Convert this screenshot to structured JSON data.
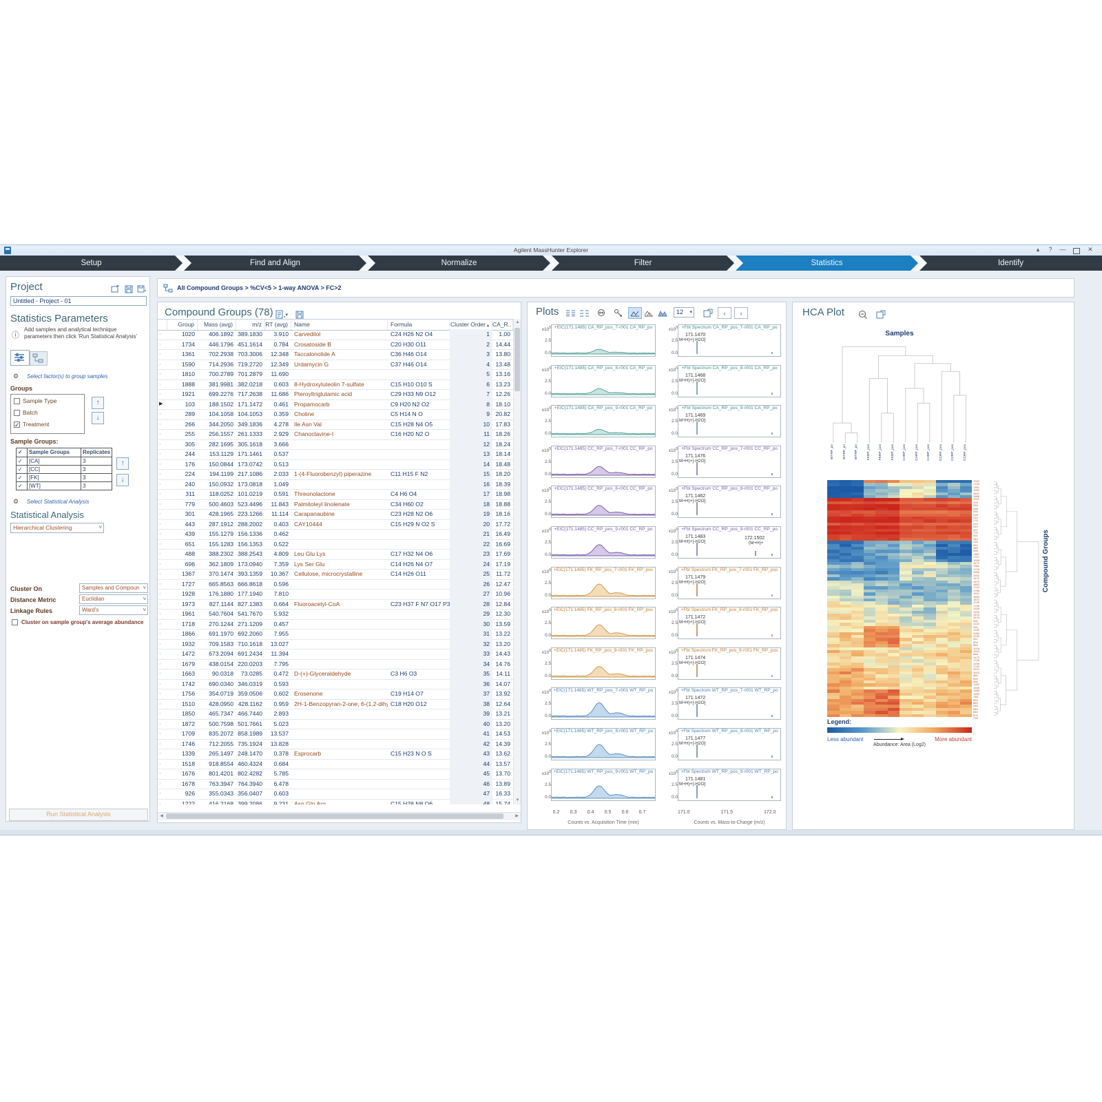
{
  "window": {
    "title": "Agilent MassHunter Explorer"
  },
  "nav": {
    "tabs": [
      {
        "label": "Setup",
        "active": false
      },
      {
        "label": "Find and Align",
        "active": false
      },
      {
        "label": "Normalize",
        "active": false
      },
      {
        "label": "Filter",
        "active": false
      },
      {
        "label": "Statistics",
        "active": true
      },
      {
        "label": "Identify",
        "active": false
      }
    ]
  },
  "breadcrumb": {
    "path": "All Compound Groups > %CV<5 > 1-way ANOVA > FC>2"
  },
  "project": {
    "title": "Project",
    "name": "Untitled - Project - 01"
  },
  "stats_params": {
    "title": "Statistics Parameters",
    "info": "Add samples and analytical technique parameters then click 'Run Statistical Analysis'",
    "group_link": "Select factor(s) to group samples",
    "groups_label": "Groups",
    "factors": [
      {
        "label": "Sample Type",
        "checked": false
      },
      {
        "label": "Batch",
        "checked": false
      },
      {
        "label": "Treatment",
        "checked": true
      }
    ],
    "sample_groups_label": "Sample Groups:",
    "sample_table": {
      "headers": [
        "Sample Groups",
        "Replicates"
      ],
      "rows": [
        {
          "checked": true,
          "name": "[CA]",
          "replicates": "3"
        },
        {
          "checked": true,
          "name": "[CC]",
          "replicates": "3"
        },
        {
          "checked": true,
          "name": "[FK]",
          "replicates": "3"
        },
        {
          "checked": true,
          "name": "[WT]",
          "replicates": "3"
        }
      ]
    },
    "analysis_link": "Select Statistical Analysis",
    "analysis_label": "Statistical Analysis",
    "analysis_value": "Hierarchical Clustering",
    "cluster_on_label": "Cluster On",
    "cluster_on_value": "Samples and Compoun",
    "distance_label": "Distance Metric",
    "distance_value": "Euclidian",
    "linkage_label": "Linkage Rules",
    "linkage_value": "Ward's",
    "avg_checkbox": "Cluster on sample group's average abundance",
    "run_button": "Run Statistical Analysis"
  },
  "table": {
    "title": "Compound Groups (78)",
    "headers": [
      "Group",
      "Mass (avg)",
      "m/z",
      "RT (avg)",
      "Name",
      "Formula",
      "Cluster Order",
      "CA_R.."
    ],
    "sorted_column": "Cluster Order",
    "selected_group": "103",
    "rows": [
      [
        "1020",
        "406.1892",
        "389.1830",
        "3.910",
        "Carvedilol",
        "C24 H26 N2 O4",
        "1",
        "1.00"
      ],
      [
        "1734",
        "446.1796",
        "451.1614",
        "0.784",
        "Crosatoside B",
        "C20 H30 O11",
        "2",
        "14.44"
      ],
      [
        "1361",
        "702.2938",
        "703.3006",
        "12.348",
        "Taccalonolide A",
        "C36 H46 O14",
        "3",
        "13.80"
      ],
      [
        "1590",
        "714.2936",
        "719.2720",
        "12.349",
        "Urdamycin G",
        "C37 H46 O14",
        "4",
        "13.48"
      ],
      [
        "1810",
        "700.2789",
        "701.2879",
        "11.690",
        "",
        "",
        "5",
        "13.16"
      ],
      [
        "1888",
        "381.9981",
        "382.0218",
        "0.603",
        "8-Hydroxyluteolin 7-sulfate",
        "C15 H10 O10 S",
        "6",
        "13.23"
      ],
      [
        "1921",
        "699.2276",
        "717.2638",
        "11.686",
        "Pteroyltriglutamic acid",
        "C29 H33 N9 O12",
        "7",
        "12.26"
      ],
      [
        "103",
        "188.1502",
        "171.1472",
        "0.461",
        "Propamocarb",
        "C9 H20 N2 O2",
        "8",
        "18.10"
      ],
      [
        "289",
        "104.1058",
        "104.1053",
        "0.359",
        "Choline",
        "C5 H14 N O",
        "9",
        "20.82"
      ],
      [
        "266",
        "344.2050",
        "349.1836",
        "4.278",
        "Ile Asn Val",
        "C15 H28 N4 O5",
        "10",
        "17.83"
      ],
      [
        "255",
        "256.1557",
        "261.1333",
        "2.929",
        "Chanoclavine-I",
        "C16 H20 N2 O",
        "11",
        "18.26"
      ],
      [
        "305",
        "282.1695",
        "305.1618",
        "3.666",
        "",
        "",
        "12",
        "18.24"
      ],
      [
        "244",
        "153.1129",
        "171.1461",
        "0.537",
        "",
        "",
        "13",
        "18.14"
      ],
      [
        "176",
        "150.0844",
        "173.0742",
        "0.513",
        "",
        "",
        "14",
        "18.48"
      ],
      [
        "224",
        "194.1199",
        "217.1086",
        "2.033",
        "1-(4-Fluorobenzyl) piperazine",
        "C11 H15 F N2",
        "15",
        "18.20"
      ],
      [
        "240",
        "150.0932",
        "173.0818",
        "1.049",
        "",
        "",
        "16",
        "18.39"
      ],
      [
        "311",
        "118.0252",
        "101.0219",
        "0.591",
        "Threonolactone",
        "C4 H6 O4",
        "17",
        "18.98"
      ],
      [
        "779",
        "500.4603",
        "523.4496",
        "11.843",
        "Palmitoleyl linolenate",
        "C34 H60 O2",
        "18",
        "18.88"
      ],
      [
        "301",
        "428.1965",
        "223.1266",
        "11.114",
        "Carapanaubine",
        "C23 H28 N2 O6",
        "19",
        "18.16"
      ],
      [
        "443",
        "287.1912",
        "288.2002",
        "0.403",
        "CAY10444",
        "C15 H29 N O2 S",
        "20",
        "17.72"
      ],
      [
        "439",
        "155.1279",
        "156.1336",
        "0.462",
        "",
        "",
        "21",
        "16.49"
      ],
      [
        "651",
        "155.1283",
        "156.1353",
        "0.522",
        "",
        "",
        "22",
        "16.69"
      ],
      [
        "488",
        "388.2302",
        "388.2543",
        "4.809",
        "Leu Glu Lys",
        "C17 H32 N4 O6",
        "23",
        "17.69"
      ],
      [
        "696",
        "362.1809",
        "173.0940",
        "7.359",
        "Lys Ser Glu",
        "C14 H26 N4 O7",
        "24",
        "17.19"
      ],
      [
        "1367",
        "370.1474",
        "393.1359",
        "10.367",
        "Cellulose, microcrystalline",
        "C14 H26 O11",
        "25",
        "11.72"
      ],
      [
        "1727",
        "665.8563",
        "666.8618",
        "0.596",
        "",
        "",
        "26",
        "12.47"
      ],
      [
        "1928",
        "176.1880",
        "177.1940",
        "7.810",
        "",
        "",
        "27",
        "10.96"
      ],
      [
        "1973",
        "827.1144",
        "827.1383",
        "0.664",
        "Fluoroacetyl-CoA",
        "C23 H37 F N7 O17 P3 S",
        "28",
        "12.84"
      ],
      [
        "1961",
        "540.7604",
        "541.7670",
        "5.932",
        "",
        "",
        "29",
        "12.30"
      ],
      [
        "1718",
        "270.1244",
        "271.1209",
        "0.457",
        "",
        "",
        "30",
        "13.59"
      ],
      [
        "1866",
        "691.1970",
        "692.2060",
        "7.955",
        "",
        "",
        "31",
        "13.22"
      ],
      [
        "1932",
        "709.1583",
        "710.1618",
        "13.027",
        "",
        "",
        "32",
        "13.20"
      ],
      [
        "1472",
        "673.2094",
        "691.2434",
        "11.394",
        "",
        "",
        "33",
        "14.43"
      ],
      [
        "1679",
        "438.0154",
        "220.0203",
        "7.795",
        "",
        "",
        "34",
        "14.76"
      ],
      [
        "1663",
        "90.0318",
        "73.0285",
        "0.472",
        "D-(+)-Glyceraldehyde",
        "C3 H6 O3",
        "35",
        "14.11"
      ],
      [
        "1742",
        "690.0340",
        "346.0319",
        "0.593",
        "",
        "",
        "36",
        "14.07"
      ],
      [
        "1756",
        "354.0719",
        "359.0506",
        "0.602",
        "Erosenone",
        "C19 H14 O7",
        "37",
        "13.92"
      ],
      [
        "1510",
        "428.0950",
        "428.1162",
        "0.959",
        "2H-1-Benzopyran-2-one, 6-(1,2-dihydr...",
        "C18 H20 O12",
        "38",
        "12.64"
      ],
      [
        "1850",
        "465.7347",
        "466.7440",
        "2.893",
        "",
        "",
        "39",
        "13.21"
      ],
      [
        "1872",
        "500.7598",
        "501.7661",
        "5.023",
        "",
        "",
        "40",
        "13.20"
      ],
      [
        "1709",
        "835.2072",
        "858.1989",
        "13.537",
        "",
        "",
        "41",
        "14.53"
      ],
      [
        "1746",
        "712.2055",
        "735.1924",
        "13.828",
        "",
        "",
        "42",
        "14.39"
      ],
      [
        "1339",
        "265.1497",
        "248.1470",
        "0.378",
        "Esprocarb",
        "C15 H23 N O S",
        "43",
        "13.62"
      ],
      [
        "1518",
        "918.8554",
        "460.4324",
        "0.684",
        "",
        "",
        "44",
        "13.57"
      ],
      [
        "1676",
        "801.4201",
        "802.4282",
        "5.785",
        "",
        "",
        "45",
        "13.70"
      ],
      [
        "1678",
        "763.3947",
        "764.3940",
        "6.478",
        "",
        "",
        "46",
        "13.89"
      ],
      [
        "926",
        "355.0343",
        "356.0407",
        "0.603",
        "",
        "",
        "47",
        "16.33"
      ],
      [
        "1222",
        "416.2168",
        "399.2086",
        "9.231",
        "Asn Gln Arg",
        "C15 H28 N8 O6",
        "48",
        "15.74"
      ]
    ]
  },
  "plots": {
    "title": "Plots",
    "page_size": "12",
    "yaxis_mult": "x10",
    "yaxis_exp": "5",
    "ytick_hi": "2.5",
    "ytick_lo": "0.0",
    "eic_xticks": [
      "0.2",
      "0.3",
      "0.4",
      "0.5",
      "0.6",
      "0.7"
    ],
    "eic_xlabel": "Counts vs. Acquisition Time (min)",
    "spec_xticks": [
      "171.0",
      "171.5",
      "172.0"
    ],
    "spec_xlabel": "Counts vs. Mass-to-Charge (m/z)",
    "rows": [
      {
        "sample": "CA_RP_pos_7",
        "group": "CA",
        "eic_title": "+EIC(171.1485) CA_RP_pos_7-r001 CA_RP_po",
        "spec_title": "+FbI Spectrum CA_RP_pos_7-r001 CA_RP_po",
        "peak_mz": "171.1470",
        "peak_label": "M+H)+[-H2O]",
        "amp": 0.2,
        "extra_mz": "",
        "extra_label": ""
      },
      {
        "sample": "CA_RP_pos_8",
        "group": "CA",
        "eic_title": "+EIC(171.1485) CA_RP_pos_8-r001 CA_RP_po",
        "spec_title": "+FbI Spectrum CA_RP_pos_8-r001 CA_RP_po",
        "peak_mz": "171.1468",
        "peak_label": "M+H)+[-H2O]",
        "amp": 0.27,
        "extra_mz": "",
        "extra_label": ""
      },
      {
        "sample": "CA_RP_pos_9",
        "group": "CA",
        "eic_title": "+EIC(171.1485) CA_RP_pos_9-r001 CA_RP_po",
        "spec_title": "+FbI Spectrum CA_RP_pos_9-r001 CA_RP_po",
        "peak_mz": "171.1469",
        "peak_label": "M+H)+[-H2O]",
        "amp": 0.23,
        "extra_mz": "",
        "extra_label": ""
      },
      {
        "sample": "CC_RP_pos_7",
        "group": "CC",
        "eic_title": "+EIC(171.1485) CC_RP_pos_7-r001 CC_RP_po",
        "spec_title": "+FbI Spectrum CC_RP_pos_7-r001 CC_RP_po",
        "peak_mz": "171.1476",
        "peak_label": "M+H)+[-H2O]",
        "amp": 0.42,
        "extra_mz": "",
        "extra_label": ""
      },
      {
        "sample": "CC_RP_pos_8",
        "group": "CC",
        "eic_title": "+EIC(171.1485) CC_RP_pos_8-r001 CC_RP_po",
        "spec_title": "+FbI Spectrum CC_RP_pos_8-r001 CC_RP_po",
        "peak_mz": "171.1462",
        "peak_label": "M+H)+[-H2O]",
        "amp": 0.48,
        "extra_mz": "",
        "extra_label": ""
      },
      {
        "sample": "CC_RP_pos_9",
        "group": "CC",
        "eic_title": "+EIC(171.1485) CC_RP_pos_9-r001 CC_RP_po",
        "spec_title": "+FbI Spectrum CC_RP_pos_9-r001 CC_RP_po",
        "peak_mz": "171.1483",
        "peak_label": "M+H)+[-H2O]",
        "amp": 0.55,
        "extra_mz": "172.1502",
        "extra_label": "(M+H)+"
      },
      {
        "sample": "FK_RP_pos_7",
        "group": "FK",
        "eic_title": "+EIC(171.1485) FK_RP_pos_7-r001 FK_RP_pos",
        "spec_title": "+FbI Spectrum FK_RP_pos_7-r001 FK_RP_pos",
        "peak_mz": "171.1479",
        "peak_label": "M+H)+[-H2O]",
        "amp": 0.62,
        "extra_mz": "",
        "extra_label": ""
      },
      {
        "sample": "FK_RP_pos_8",
        "group": "FK",
        "eic_title": "+EIC(171.1485) FK_RP_pos_8-r001 FK_RP_pos",
        "spec_title": "+FbI Spectrum FK_RP_pos_8-r001 FK_RP_pos",
        "peak_mz": "171.1472",
        "peak_label": "M+H)+[-H2O]",
        "amp": 0.58,
        "extra_mz": "",
        "extra_label": ""
      },
      {
        "sample": "FK_RP_pos_9",
        "group": "FK",
        "eic_title": "+EIC(171.1485) FK_RP_pos_9-r001 FK_RP_pos",
        "spec_title": "+FbI Spectrum FK_RP_pos_9-r001 FK_RP_pos",
        "peak_mz": "171.1474",
        "peak_label": "M+H)+[-H2O]",
        "amp": 0.52,
        "extra_mz": "",
        "extra_label": ""
      },
      {
        "sample": "WT_RP_pos_7",
        "group": "WT",
        "eic_title": "+EIC(171.1485) WT_RP_pos_7-r001 WT_RP_po",
        "spec_title": "+FbI Spectrum WT_RP_pos_7-r001 WT_RP_po",
        "peak_mz": "171.1472",
        "peak_label": "M+H)+[-H2O]",
        "amp": 0.72,
        "extra_mz": "",
        "extra_label": ""
      },
      {
        "sample": "WT_RP_pos_8",
        "group": "WT",
        "eic_title": "+EIC(171.1485) WT_RP_pos_8-r001 WT_RP_po",
        "spec_title": "+FbI Spectrum WT_RP_pos_8-r001 WT_RP_po",
        "peak_mz": "171.1477",
        "peak_label": "M+H)+[-H2O]",
        "amp": 0.66,
        "extra_mz": "",
        "extra_label": ""
      },
      {
        "sample": "WT_RP_pos_9",
        "group": "WT",
        "eic_title": "+EIC(171.1485) WT_RP_pos_9-r001 WT_RP_po",
        "spec_title": "+FbI Spectrum WT_RP_pos_9-r001 WT_RP_po",
        "peak_mz": "171.1481",
        "peak_label": "M+H)+[-H2O]",
        "amp": 0.62,
        "extra_mz": "",
        "extra_label": ""
      }
    ]
  },
  "hca": {
    "title": "HCA Plot",
    "samples_label": "Samples",
    "col_labels": [
      "WTRP_po",
      "WTRP_po",
      "WTRP_po",
      "FKRP_pos",
      "FKRP_pos",
      "FKRP_pos",
      "CARP_pos",
      "CARP_pos",
      "CARP_pos",
      "CCRP_pos",
      "CCRP_pos",
      "CCRP_pos"
    ],
    "row_axis_label": "Compound Groups",
    "legend_label": "Legend:",
    "legend_less": "Less abundant",
    "legend_more": "More abundant",
    "legend_axis": "Abundance: Area (Log2)",
    "row_labels": [
      "1020",
      "1734",
      "1361",
      "1590",
      "1810",
      "1888",
      "1921",
      "103",
      "289",
      "266",
      "255",
      "305",
      "244",
      "176",
      "224",
      "240",
      "311",
      "779",
      "301",
      "443",
      "439",
      "651",
      "488",
      "696",
      "1367",
      "1727",
      "1928",
      "1973",
      "1961",
      "1718",
      "1866",
      "1932",
      "1472",
      "1679",
      "1663",
      "1742",
      "1756",
      "1510",
      "1850",
      "1872",
      "1709",
      "1746",
      "1339",
      "1518",
      "1676",
      "1678",
      "926",
      "1222",
      "934",
      "1232",
      "1158",
      "1292",
      "941",
      "804",
      "585",
      "1018",
      "1043",
      "848",
      "1473",
      "1728",
      "1298",
      "1782",
      "1513",
      "1023",
      "885",
      "815",
      "858",
      "1105",
      "1526",
      "1065",
      "1090",
      "755",
      "891",
      "884",
      "948",
      "854",
      "662",
      "576",
      "736"
    ],
    "heat_bands": [
      {
        "count": 1,
        "v": [
          0.02,
          0.78,
          0.55,
          0.04
        ]
      },
      {
        "count": 5,
        "v": [
          0.02,
          0.38,
          0.5,
          0.3
        ]
      },
      {
        "count": 14,
        "v": [
          0.95,
          0.96,
          0.9,
          0.9
        ]
      },
      {
        "count": 7,
        "v": [
          0.12,
          0.28,
          0.34,
          0.1
        ]
      },
      {
        "count": 6,
        "v": [
          0.26,
          0.22,
          0.44,
          0.38
        ]
      },
      {
        "count": 8,
        "v": [
          0.46,
          0.34,
          0.32,
          0.36
        ]
      },
      {
        "count": 7,
        "v": [
          0.55,
          0.5,
          0.42,
          0.5
        ]
      },
      {
        "count": 7,
        "v": [
          0.58,
          0.8,
          0.55,
          0.55
        ]
      },
      {
        "count": 7,
        "v": [
          0.62,
          0.55,
          0.52,
          0.6
        ]
      },
      {
        "count": 7,
        "v": [
          0.74,
          0.62,
          0.56,
          0.64
        ]
      },
      {
        "count": 9,
        "v": [
          0.72,
          0.84,
          0.6,
          0.68
        ]
      }
    ]
  },
  "colors": {
    "nav_active": "#1b7fc2",
    "nav_dark": "#313b46",
    "CA": {
      "stroke": "#56a49c",
      "fill": "#c8e4e1",
      "title": "#3f8e8e",
      "peak": "#2f7d76"
    },
    "CC": {
      "stroke": "#7c62ab",
      "fill": "#d5c8e8",
      "title": "#7a5aa8",
      "peak": "#5c4587"
    },
    "FK": {
      "stroke": "#cf9a52",
      "fill": "#f3ddb8",
      "title": "#c87828",
      "peak": "#9a6420"
    },
    "WT": {
      "stroke": "#5f8fc0",
      "fill": "#c3d9ed",
      "title": "#4a7fb5",
      "peak": "#33618f"
    },
    "heat_blue": "#1c5aa6",
    "heat_mid": "#f7f3c2",
    "heat_red": "#cb261e"
  }
}
